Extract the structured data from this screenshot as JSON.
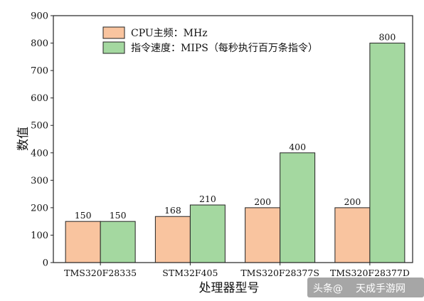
{
  "chart_data": {
    "type": "bar",
    "categories": [
      "TMS320F28335",
      "STM32F405",
      "TMS320F28377S",
      "TMS320F28377D"
    ],
    "series": [
      {
        "name": "CPU主频：MHz",
        "values": [
          150,
          168,
          200,
          200
        ],
        "color": "#f9c49f"
      },
      {
        "name": "指令速度：MIPS（每秒执行百万条指令）",
        "values": [
          150,
          210,
          400,
          800
        ],
        "color": "#a4d8a0"
      }
    ],
    "xlabel": "处理器型号",
    "ylabel": "数值",
    "ylim": [
      0,
      900
    ],
    "yticks": [
      0,
      100,
      200,
      300,
      400,
      500,
      600,
      700,
      800,
      900
    ],
    "grid": false,
    "legend_position": "top-left",
    "data_labels": true
  },
  "watermark": {
    "text": "头条@",
    "tail": "天成手游网"
  }
}
